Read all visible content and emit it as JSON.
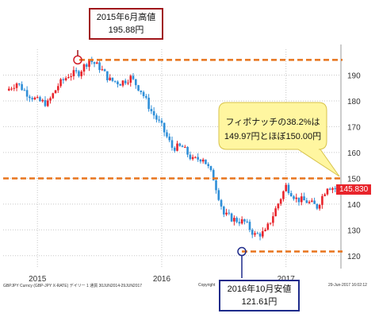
{
  "chart_data": {
    "type": "candlestick",
    "title": "",
    "xlabel": "",
    "ylabel": "",
    "x_ticks": [
      "2015",
      "2016",
      "2017"
    ],
    "y_ticks": [
      120,
      130,
      140,
      150,
      160,
      170,
      180,
      190
    ],
    "ylim": [
      115,
      200
    ],
    "grid": true,
    "series": [
      {
        "name": "GBP/JPY",
        "x": [
          "2014-10",
          "2014-11",
          "2014-12",
          "2015-01",
          "2015-02",
          "2015-03",
          "2015-04",
          "2015-05",
          "2015-06",
          "2015-07",
          "2015-08",
          "2015-09",
          "2015-10",
          "2015-11",
          "2015-12",
          "2016-01",
          "2016-02",
          "2016-03",
          "2016-04",
          "2016-05",
          "2016-06",
          "2016-07",
          "2016-08",
          "2016-09",
          "2016-10",
          "2016-11",
          "2016-12",
          "2017-01",
          "2017-02",
          "2017-03",
          "2017-04",
          "2017-05",
          "2017-06"
        ],
        "values": [
          184,
          187,
          183,
          180,
          179,
          186,
          190,
          191,
          195.88,
          193,
          188,
          187,
          189,
          184,
          176,
          170,
          162,
          162,
          157,
          158,
          150,
          136,
          134,
          133,
          128,
          129,
          138,
          147,
          142,
          141,
          139,
          147,
          145.83
        ]
      }
    ],
    "reference_lines": [
      {
        "label": "high",
        "value": 195.88,
        "color": "#e8741c"
      },
      {
        "label": "fibonacci-38.2",
        "value": 149.97,
        "color": "#e8741c"
      },
      {
        "label": "low",
        "value": 121.61,
        "color": "#e8741c"
      }
    ],
    "last_price_label": "145.830",
    "colors": {
      "up": "#e8242b",
      "down": "#2f8fd8",
      "grid": "#c8c8c8",
      "ref": "#e8741c"
    }
  },
  "annotations": {
    "high": {
      "line1": "2015年6月高値",
      "line2": "195.88円",
      "color": "#a0161b"
    },
    "fib": {
      "line1": "フィボナッチの38.2%は",
      "line2": "149.97円とほぼ150.00円",
      "fill": "#fff6a0"
    },
    "low": {
      "line1": "2016年10月安値",
      "line2": "121.61円",
      "color": "#1e2b8a"
    }
  },
  "footer": {
    "left": "GBPJPY Curncy (GBP-JPY X-RATE) デイリー 1 通貨 30JUN2014-29JUN2017",
    "mid": "Copyright",
    "right": "29-Jun-2017 16:02:12"
  }
}
